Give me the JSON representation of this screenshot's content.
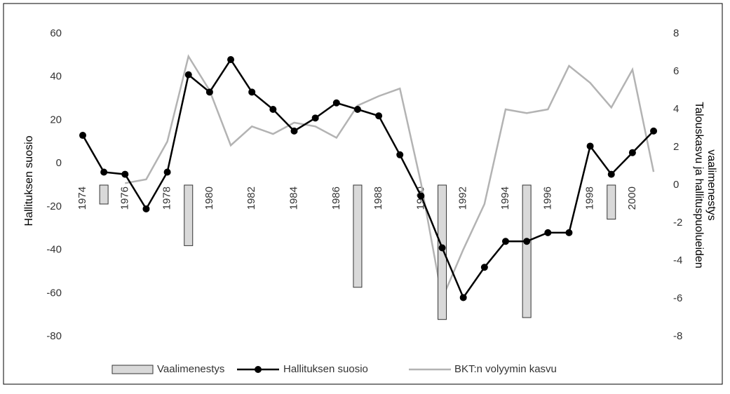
{
  "chart_data": {
    "type": "combo",
    "categories": [
      "1974",
      null,
      "1976",
      null,
      "1978",
      null,
      "1980",
      null,
      "1982",
      null,
      "1984",
      null,
      "1986",
      null,
      "1988",
      null,
      "1990",
      null,
      "1992",
      null,
      "1994",
      null,
      "1996",
      null,
      "1998",
      null,
      "2000",
      null
    ],
    "series": [
      {
        "name": "Vaalimenestys",
        "type": "bar",
        "axis": "y2",
        "color": "#d9d9d9",
        "values": [
          null,
          -1.0,
          null,
          null,
          null,
          -3.2,
          null,
          null,
          null,
          null,
          null,
          null,
          null,
          -5.4,
          null,
          null,
          null,
          -7.1,
          null,
          null,
          null,
          -7.0,
          null,
          null,
          null,
          -1.8,
          null,
          null
        ]
      },
      {
        "name": "Hallituksen suosio",
        "type": "line",
        "color": "#000000",
        "marker": true,
        "values": [
          13,
          -4,
          -5,
          -21,
          -4,
          41,
          33,
          48,
          33,
          25,
          15,
          21,
          28,
          25,
          22,
          4,
          -15,
          -39,
          -62,
          -48,
          -36,
          -36,
          -32,
          -32,
          8,
          -5,
          5,
          15
        ]
      },
      {
        "name": "BKT:n volyymin kasvu",
        "type": "line",
        "axis": "y2",
        "color": "#b3b3b3",
        "marker": false,
        "values": [
          null,
          null,
          0.1,
          0.3,
          2.3,
          6.8,
          5.0,
          2.1,
          3.1,
          2.7,
          3.3,
          3.1,
          2.5,
          4.2,
          4.7,
          5.1,
          0.1,
          -6.0,
          -3.4,
          -1.0,
          4.0,
          3.8,
          4.0,
          6.3,
          5.4,
          4.1,
          6.1,
          0.7
        ]
      }
    ],
    "ylabel": "Hallituksen suosio",
    "y2label": [
      "Talouskasvu ja hallituspuolueiden",
      "vaalimenestys"
    ],
    "ylim": [
      -80,
      60
    ],
    "yticks": [
      -80,
      -60,
      -40,
      -20,
      0,
      20,
      40,
      60
    ],
    "y2lim": [
      -8,
      8
    ],
    "y2ticks": [
      -8,
      -6,
      -4,
      -2,
      0,
      2,
      4,
      6,
      8
    ],
    "legend": "bottom"
  }
}
